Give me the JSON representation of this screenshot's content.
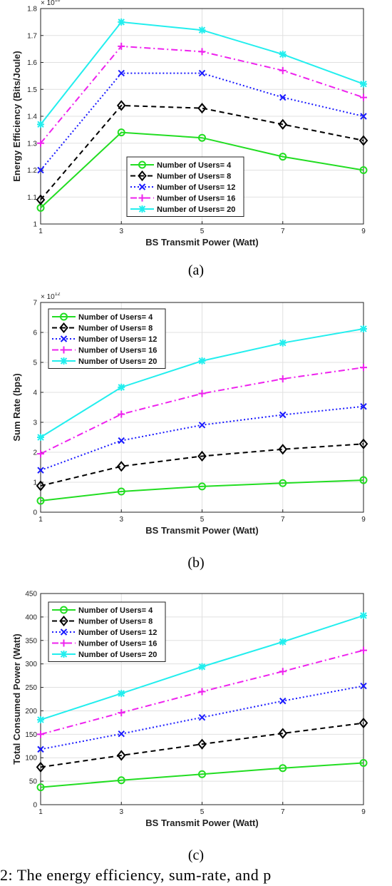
{
  "figure_captions": [
    "(a)",
    "(b)",
    "(c)"
  ],
  "bottom_caption": "2:  The  energy  efficiency,  sum-rate,  and  p",
  "series_styles": [
    {
      "color": "#22dd22",
      "marker": "circle",
      "dash": ""
    },
    {
      "color": "#000000",
      "marker": "diamond",
      "dash": "7,5"
    },
    {
      "color": "#1a1aff",
      "marker": "x",
      "dash": "2,3"
    },
    {
      "color": "#ee22ee",
      "marker": "plus",
      "dash": "9,4,2,4"
    },
    {
      "color": "#22eeee",
      "marker": "star",
      "dash": ""
    }
  ],
  "chart_data": [
    {
      "type": "line",
      "title": "",
      "xlabel": "BS Transmit Power (Watt)",
      "ylabel": "Energy Efficiency (Bits/Joule)",
      "multiplier": "× 10",
      "exponent": "10",
      "x": [
        1,
        3,
        5,
        7,
        9
      ],
      "xlim": [
        1,
        9
      ],
      "ylim": [
        1.0,
        1.8
      ],
      "xticks": [
        "1",
        "3",
        "5",
        "7",
        "9"
      ],
      "yticks": [
        "1",
        "1.1",
        "1.2",
        "1.3",
        "1.4",
        "1.5",
        "1.6",
        "1.7",
        "1.8"
      ],
      "ytick_values": [
        1.0,
        1.1,
        1.2,
        1.3,
        1.4,
        1.5,
        1.6,
        1.7,
        1.8
      ],
      "grid": true,
      "legend_position": "lower-center",
      "series": [
        {
          "name": "Number of Users= 4",
          "values": [
            1.06,
            1.34,
            1.32,
            1.25,
            1.2
          ]
        },
        {
          "name": "Number of Users= 8",
          "values": [
            1.09,
            1.44,
            1.43,
            1.37,
            1.31
          ]
        },
        {
          "name": "Number of Users= 12",
          "values": [
            1.2,
            1.56,
            1.56,
            1.47,
            1.4
          ]
        },
        {
          "name": "Number of Users= 16",
          "values": [
            1.3,
            1.66,
            1.64,
            1.57,
            1.47
          ]
        },
        {
          "name": "Number of Users= 20",
          "values": [
            1.37,
            1.75,
            1.72,
            1.63,
            1.52
          ]
        }
      ]
    },
    {
      "type": "line",
      "title": "",
      "xlabel": "BS Transmit Power (Watt)",
      "ylabel": "Sum Rate (bps)",
      "multiplier": "× 10",
      "exponent": "12",
      "x": [
        1,
        3,
        5,
        7,
        9
      ],
      "xlim": [
        1,
        9
      ],
      "ylim": [
        0,
        7
      ],
      "xticks": [
        "1",
        "3",
        "5",
        "7",
        "9"
      ],
      "yticks": [
        "0",
        "1",
        "2",
        "3",
        "4",
        "5",
        "6",
        "7"
      ],
      "ytick_values": [
        0,
        1,
        2,
        3,
        4,
        5,
        6,
        7
      ],
      "grid": true,
      "legend_position": "top-left",
      "series": [
        {
          "name": "Number of Users= 4",
          "values": [
            0.38,
            0.69,
            0.86,
            0.97,
            1.07
          ]
        },
        {
          "name": "Number of Users= 8",
          "values": [
            0.88,
            1.53,
            1.87,
            2.1,
            2.28
          ]
        },
        {
          "name": "Number of Users= 12",
          "values": [
            1.4,
            2.39,
            2.91,
            3.25,
            3.53
          ]
        },
        {
          "name": "Number of Users= 16",
          "values": [
            1.95,
            3.27,
            3.96,
            4.45,
            4.83
          ]
        },
        {
          "name": "Number of Users= 20",
          "values": [
            2.5,
            4.17,
            5.05,
            5.65,
            6.12
          ]
        }
      ]
    },
    {
      "type": "line",
      "title": "",
      "xlabel": "BS Transmit Power (Watt)",
      "ylabel": "Total Consumed Power (Watt)",
      "multiplier": "",
      "exponent": "",
      "x": [
        1,
        3,
        5,
        7,
        9
      ],
      "xlim": [
        1,
        9
      ],
      "ylim": [
        0,
        450
      ],
      "xticks": [
        "1",
        "3",
        "5",
        "7",
        "9"
      ],
      "yticks": [
        "0",
        "50",
        "100",
        "150",
        "200",
        "250",
        "300",
        "350",
        "400",
        "450"
      ],
      "ytick_values": [
        0,
        50,
        100,
        150,
        200,
        250,
        300,
        350,
        400,
        450
      ],
      "grid": true,
      "legend_position": "top-left",
      "series": [
        {
          "name": "Number of Users= 4",
          "values": [
            37,
            52,
            65,
            78,
            89
          ]
        },
        {
          "name": "Number of Users= 8",
          "values": [
            80,
            105,
            129,
            152,
            174
          ]
        },
        {
          "name": "Number of Users= 12",
          "values": [
            118,
            151,
            186,
            221,
            253
          ]
        },
        {
          "name": "Number of Users= 16",
          "values": [
            150,
            196,
            241,
            284,
            329
          ]
        },
        {
          "name": "Number of Users= 20",
          "values": [
            181,
            237,
            294,
            347,
            403
          ]
        }
      ]
    }
  ]
}
